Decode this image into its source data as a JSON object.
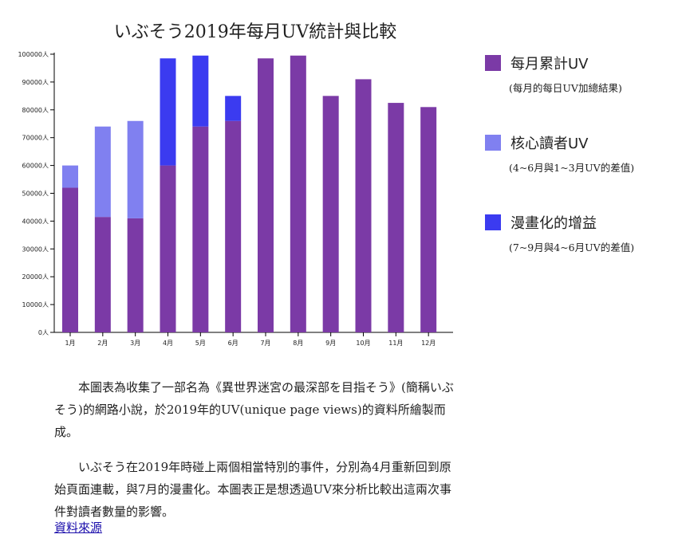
{
  "chart_data": {
    "type": "bar",
    "stacked": true,
    "title": "いぶそう2019年每月UV統計與比較",
    "categories": [
      "1月",
      "2月",
      "3月",
      "4月",
      "5月",
      "6月",
      "7月",
      "8月",
      "9月",
      "10月",
      "11月",
      "12月"
    ],
    "series": [
      {
        "name": "每月累計UV",
        "color": "#7b3aa6",
        "values": [
          52000,
          41500,
          41000,
          60000,
          74000,
          76000,
          98500,
          99500,
          85000,
          91000,
          82500,
          81000
        ]
      },
      {
        "name": "核心讀者UV",
        "color": "#8080f0",
        "values": [
          8000,
          32500,
          35000,
          0,
          0,
          0,
          0,
          0,
          0,
          0,
          0,
          0
        ]
      },
      {
        "name": "漫畫化的增益",
        "color": "#3b3bf0",
        "values": [
          0,
          0,
          0,
          38500,
          25500,
          9000,
          0,
          0,
          0,
          0,
          0,
          0
        ]
      }
    ],
    "ylim": [
      0,
      100000
    ],
    "yticks": [
      0,
      10000,
      20000,
      30000,
      40000,
      50000,
      60000,
      70000,
      80000,
      90000,
      100000
    ],
    "ytick_suffix": "人",
    "grid": false,
    "legend_position": "right"
  },
  "legend": [
    {
      "label": "每月累計UV",
      "note": "(每月的每日UV加總結果)",
      "color": "#7b3aa6"
    },
    {
      "label": "核心讀者UV",
      "note": "(4~6月與1~3月UV的差值)",
      "color": "#8080f0"
    },
    {
      "label": "漫畫化的增益",
      "note": "(7~9月與4~6月UV的差值)",
      "color": "#3b3bf0"
    }
  ],
  "description": {
    "p1": "本圖表為收集了一部名為《異世界迷宮の最深部を目指そう》(簡稱いぶそう)的網路小說，於2019年的UV(unique page views)的資料所繪製而成。",
    "p2": "いぶそう在2019年時碰上兩個相當特別的事件，分別為4月重新回到原始頁面連載，與7月的漫畫化。本圖表正是想透過UV來分析比較出這兩次事件對讀者數量的影響。"
  },
  "source_link": "資料來源"
}
